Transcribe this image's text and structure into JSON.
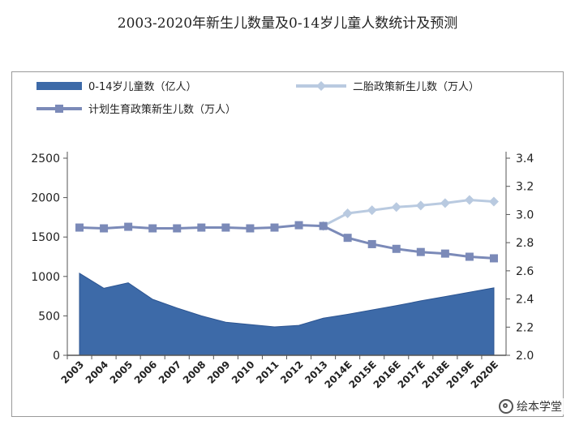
{
  "title": "2003-2020年新生儿数量及0-14岁儿童人数统计及预测",
  "watermark": "绘本学堂",
  "colors": {
    "area": "#3d6aa8",
    "area_edge": "#2c5491",
    "plan_line": "#7b8ab8",
    "second_line": "#b9cae0",
    "axis": "#555555",
    "text": "#222222"
  },
  "chart_data": {
    "type": "area+line",
    "title": "2003-2020年新生儿数量及0-14岁儿童人数统计及预测",
    "categories": [
      "2003",
      "2004",
      "2005",
      "2006",
      "2007",
      "2008",
      "2009",
      "2010",
      "2011",
      "2012",
      "2013",
      "2014E",
      "2015E",
      "2016E",
      "2017E",
      "2018E",
      "2019E",
      "2020E"
    ],
    "left_axis": {
      "ylim": [
        0,
        2500
      ],
      "ticks": [
        "0",
        "500",
        "1000",
        "1500",
        "2000",
        "2500"
      ]
    },
    "right_axis": {
      "ylim": [
        2.0,
        3.4
      ],
      "ticks": [
        "2.0",
        "2.2",
        "2.4",
        "2.6",
        "2.8",
        "3.0",
        "3.2",
        "3.4"
      ]
    },
    "series": [
      {
        "name": "0-14岁儿童数（亿人）",
        "type": "area",
        "axis": "left",
        "values": [
          1040,
          850,
          920,
          710,
          600,
          500,
          420,
          390,
          360,
          380,
          470,
          520,
          575,
          630,
          690,
          745,
          800,
          855
        ]
      },
      {
        "name": "二胎政策新生儿数（万人）",
        "type": "line",
        "axis": "left",
        "marker": "diamond",
        "values": [
          null,
          null,
          null,
          null,
          null,
          null,
          null,
          null,
          null,
          null,
          1640,
          1800,
          1840,
          1880,
          1900,
          1930,
          1970,
          1950
        ]
      },
      {
        "name": "计划生育政策新生儿数（万人）",
        "type": "line",
        "axis": "left",
        "marker": "square",
        "values": [
          1620,
          1610,
          1630,
          1610,
          1610,
          1620,
          1620,
          1610,
          1620,
          1650,
          1640,
          1490,
          1410,
          1350,
          1310,
          1290,
          1250,
          1230
        ]
      }
    ],
    "legend": [
      "0-14岁儿童数（亿人）",
      "二胎政策新生儿数（万人）",
      "计划生育政策新生儿数（万人）"
    ]
  }
}
